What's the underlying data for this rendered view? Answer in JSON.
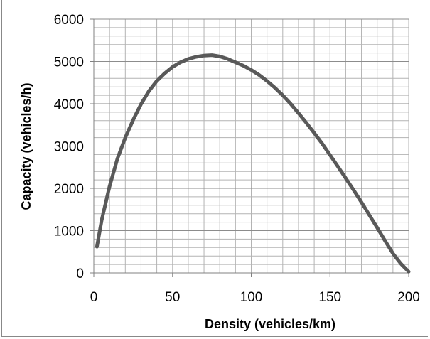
{
  "chart_data": {
    "type": "line",
    "title": "",
    "xlabel": "Density (vehicles/km)",
    "ylabel": "Capacity (vehicles/h)",
    "xlim": [
      0,
      200
    ],
    "ylim": [
      0,
      6000
    ],
    "xticks": [
      0,
      50,
      100,
      150,
      200
    ],
    "yticks": [
      0,
      1000,
      2000,
      3000,
      4000,
      5000,
      6000
    ],
    "x_tick_labels": [
      "0",
      "50",
      "100",
      "150",
      "200"
    ],
    "y_tick_labels": [
      "0",
      "1000",
      "2000",
      "3000",
      "4000",
      "5000",
      "6000"
    ],
    "grid": true,
    "legend": "none",
    "line_color": "#595959",
    "grid_color": "#b3b3b3",
    "series": [
      {
        "x": [
          2,
          5,
          10,
          15,
          20,
          25,
          30,
          35,
          40,
          45,
          50,
          55,
          60,
          65,
          70,
          75,
          80,
          85,
          90,
          95,
          100,
          105,
          110,
          115,
          120,
          125,
          130,
          135,
          140,
          145,
          150,
          155,
          160,
          165,
          170,
          175,
          180,
          185,
          190,
          195,
          200
        ],
        "values": [
          620,
          1250,
          2050,
          2700,
          3200,
          3620,
          3990,
          4300,
          4540,
          4720,
          4870,
          4980,
          5060,
          5110,
          5140,
          5150,
          5120,
          5060,
          4980,
          4900,
          4800,
          4680,
          4540,
          4380,
          4200,
          4000,
          3780,
          3550,
          3310,
          3060,
          2790,
          2520,
          2240,
          1960,
          1670,
          1370,
          1070,
          760,
          460,
          220,
          30
        ]
      }
    ]
  }
}
